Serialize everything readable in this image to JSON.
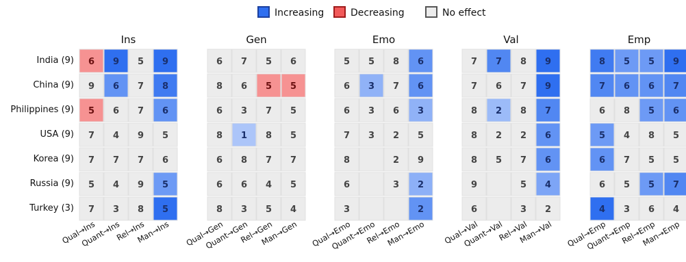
{
  "legend": {
    "items": [
      {
        "label": "Increasing",
        "color": "#2f6ff0",
        "border": "#1b3f9e"
      },
      {
        "label": "Decreasing",
        "color": "#f25a5a",
        "border": "#9e1b1b"
      },
      {
        "label": "No effect",
        "color": "#ececec",
        "border": "#555555"
      }
    ]
  },
  "chart_data": {
    "type": "heatmap",
    "rows": [
      "India (9)",
      "China (9)",
      "Philippines (9)",
      "USA (9)",
      "Korea (9)",
      "Russia (9)",
      "Turkey (3)"
    ],
    "panels": [
      {
        "title": "Ins",
        "columns": [
          "Qual→Ins",
          "Quant→Ins",
          "Rel→Ins",
          "Man→Ins"
        ],
        "cells": [
          [
            {
              "v": 6,
              "e": "dec",
              "s": 0.55
            },
            {
              "v": 9,
              "e": "inc",
              "s": 1.0
            },
            {
              "v": 5,
              "e": "none"
            },
            {
              "v": 9,
              "e": "inc",
              "s": 1.0
            }
          ],
          [
            {
              "v": 9,
              "e": "none"
            },
            {
              "v": 6,
              "e": "inc",
              "s": 0.67
            },
            {
              "v": 7,
              "e": "none"
            },
            {
              "v": 8,
              "e": "inc",
              "s": 0.89
            }
          ],
          [
            {
              "v": 5,
              "e": "dec",
              "s": 0.55
            },
            {
              "v": 6,
              "e": "none"
            },
            {
              "v": 7,
              "e": "none"
            },
            {
              "v": 6,
              "e": "inc",
              "s": 0.67
            }
          ],
          [
            {
              "v": 7,
              "e": "none"
            },
            {
              "v": 4,
              "e": "none"
            },
            {
              "v": 9,
              "e": "none"
            },
            {
              "v": 5,
              "e": "none"
            }
          ],
          [
            {
              "v": 7,
              "e": "none"
            },
            {
              "v": 7,
              "e": "none"
            },
            {
              "v": 7,
              "e": "none"
            },
            {
              "v": 6,
              "e": "none"
            }
          ],
          [
            {
              "v": 5,
              "e": "none"
            },
            {
              "v": 4,
              "e": "none"
            },
            {
              "v": 9,
              "e": "none"
            },
            {
              "v": 5,
              "e": "inc",
              "s": 0.6
            }
          ],
          [
            {
              "v": 7,
              "e": "none"
            },
            {
              "v": 3,
              "e": "none"
            },
            {
              "v": 8,
              "e": "none"
            },
            {
              "v": 5,
              "e": "inc",
              "s": 1.0
            }
          ]
        ]
      },
      {
        "title": "Gen",
        "columns": [
          "Qual→Gen",
          "Quant→Gen",
          "Rel→Gen",
          "Man→Gen"
        ],
        "cells": [
          [
            {
              "v": 6,
              "e": "none"
            },
            {
              "v": 7,
              "e": "none"
            },
            {
              "v": 5,
              "e": "none"
            },
            {
              "v": 6,
              "e": "none"
            }
          ],
          [
            {
              "v": 8,
              "e": "none"
            },
            {
              "v": 6,
              "e": "none"
            },
            {
              "v": 5,
              "e": "dec",
              "s": 0.55
            },
            {
              "v": 5,
              "e": "dec",
              "s": 0.55
            }
          ],
          [
            {
              "v": 6,
              "e": "none"
            },
            {
              "v": 3,
              "e": "none"
            },
            {
              "v": 7,
              "e": "none"
            },
            {
              "v": 5,
              "e": "none"
            }
          ],
          [
            {
              "v": 8,
              "e": "none"
            },
            {
              "v": 1,
              "e": "inc",
              "s": 0.2
            },
            {
              "v": 8,
              "e": "none"
            },
            {
              "v": 5,
              "e": "none"
            }
          ],
          [
            {
              "v": 6,
              "e": "none"
            },
            {
              "v": 8,
              "e": "none"
            },
            {
              "v": 7,
              "e": "none"
            },
            {
              "v": 7,
              "e": "none"
            }
          ],
          [
            {
              "v": 6,
              "e": "none"
            },
            {
              "v": 6,
              "e": "none"
            },
            {
              "v": 4,
              "e": "none"
            },
            {
              "v": 5,
              "e": "none"
            }
          ],
          [
            {
              "v": 8,
              "e": "none"
            },
            {
              "v": 3,
              "e": "none"
            },
            {
              "v": 5,
              "e": "none"
            },
            {
              "v": 4,
              "e": "none"
            }
          ]
        ]
      },
      {
        "title": "Emo",
        "columns": [
          "Qual→Emo",
          "Quant→Emo",
          "Rel→Emo",
          "Man→Emo"
        ],
        "cells": [
          [
            {
              "v": 5,
              "e": "none"
            },
            {
              "v": 5,
              "e": "none"
            },
            {
              "v": 8,
              "e": "none"
            },
            {
              "v": 6,
              "e": "inc",
              "s": 0.67
            }
          ],
          [
            {
              "v": 6,
              "e": "none"
            },
            {
              "v": 3,
              "e": "inc",
              "s": 0.38
            },
            {
              "v": 7,
              "e": "none"
            },
            {
              "v": 6,
              "e": "inc",
              "s": 0.67
            }
          ],
          [
            {
              "v": 6,
              "e": "none"
            },
            {
              "v": 3,
              "e": "none"
            },
            {
              "v": 6,
              "e": "none"
            },
            {
              "v": 3,
              "e": "inc",
              "s": 0.38
            }
          ],
          [
            {
              "v": 7,
              "e": "none"
            },
            {
              "v": 3,
              "e": "none"
            },
            {
              "v": 2,
              "e": "none"
            },
            {
              "v": 5,
              "e": "none"
            }
          ],
          [
            {
              "v": 8,
              "e": "none"
            },
            {
              "v": null,
              "e": "none"
            },
            {
              "v": 2,
              "e": "none"
            },
            {
              "v": 9,
              "e": "none"
            }
          ],
          [
            {
              "v": 6,
              "e": "none"
            },
            {
              "v": null,
              "e": "none"
            },
            {
              "v": 3,
              "e": "none"
            },
            {
              "v": 2,
              "e": "inc",
              "s": 0.4
            }
          ],
          [
            {
              "v": 3,
              "e": "none"
            },
            {
              "v": null,
              "e": "none"
            },
            {
              "v": null,
              "e": "none"
            },
            {
              "v": 2,
              "e": "inc",
              "s": 0.67
            }
          ]
        ]
      },
      {
        "title": "Val",
        "columns": [
          "Qual→Val",
          "Quant→Val",
          "Rel→Val",
          "Man→Val"
        ],
        "cells": [
          [
            {
              "v": 7,
              "e": "none"
            },
            {
              "v": 7,
              "e": "inc",
              "s": 0.78
            },
            {
              "v": 8,
              "e": "none"
            },
            {
              "v": 9,
              "e": "inc",
              "s": 1.0
            }
          ],
          [
            {
              "v": 7,
              "e": "none"
            },
            {
              "v": 6,
              "e": "none"
            },
            {
              "v": 7,
              "e": "none"
            },
            {
              "v": 9,
              "e": "inc",
              "s": 1.0
            }
          ],
          [
            {
              "v": 8,
              "e": "none"
            },
            {
              "v": 2,
              "e": "inc",
              "s": 0.3
            },
            {
              "v": 8,
              "e": "none"
            },
            {
              "v": 7,
              "e": "inc",
              "s": 0.78
            }
          ],
          [
            {
              "v": 8,
              "e": "none"
            },
            {
              "v": 2,
              "e": "none"
            },
            {
              "v": 2,
              "e": "none"
            },
            {
              "v": 6,
              "e": "inc",
              "s": 0.67
            }
          ],
          [
            {
              "v": 8,
              "e": "none"
            },
            {
              "v": 5,
              "e": "none"
            },
            {
              "v": 7,
              "e": "none"
            },
            {
              "v": 6,
              "e": "inc",
              "s": 0.67
            }
          ],
          [
            {
              "v": 9,
              "e": "none"
            },
            {
              "v": null,
              "e": "none"
            },
            {
              "v": 5,
              "e": "none"
            },
            {
              "v": 4,
              "e": "inc",
              "s": 0.5
            }
          ],
          [
            {
              "v": 6,
              "e": "none"
            },
            {
              "v": null,
              "e": "none"
            },
            {
              "v": 3,
              "e": "none"
            },
            {
              "v": 2,
              "e": "none"
            }
          ]
        ]
      },
      {
        "title": "Emp",
        "columns": [
          "Qual→Emp",
          "Quant→Emp",
          "Rel→Emp",
          "Man→Emp"
        ],
        "cells": [
          [
            {
              "v": 8,
              "e": "inc",
              "s": 0.89
            },
            {
              "v": 5,
              "e": "inc",
              "s": 0.6
            },
            {
              "v": 5,
              "e": "inc",
              "s": 0.6
            },
            {
              "v": 9,
              "e": "inc",
              "s": 1.0
            }
          ],
          [
            {
              "v": 7,
              "e": "inc",
              "s": 0.78
            },
            {
              "v": 6,
              "e": "inc",
              "s": 0.67
            },
            {
              "v": 6,
              "e": "inc",
              "s": 0.67
            },
            {
              "v": 7,
              "e": "inc",
              "s": 0.78
            }
          ],
          [
            {
              "v": 6,
              "e": "none"
            },
            {
              "v": 8,
              "e": "none"
            },
            {
              "v": 5,
              "e": "inc",
              "s": 0.6
            },
            {
              "v": 6,
              "e": "inc",
              "s": 0.67
            }
          ],
          [
            {
              "v": 5,
              "e": "inc",
              "s": 0.6
            },
            {
              "v": 4,
              "e": "none"
            },
            {
              "v": 8,
              "e": "none"
            },
            {
              "v": 5,
              "e": "none"
            }
          ],
          [
            {
              "v": 6,
              "e": "inc",
              "s": 0.67
            },
            {
              "v": 7,
              "e": "none"
            },
            {
              "v": 5,
              "e": "none"
            },
            {
              "v": 5,
              "e": "none"
            }
          ],
          [
            {
              "v": 6,
              "e": "none"
            },
            {
              "v": 5,
              "e": "none"
            },
            {
              "v": 5,
              "e": "inc",
              "s": 0.6
            },
            {
              "v": 7,
              "e": "inc",
              "s": 0.78
            }
          ],
          [
            {
              "v": 4,
              "e": "inc",
              "s": 1.0
            },
            {
              "v": 3,
              "e": "none"
            },
            {
              "v": 6,
              "e": "none"
            },
            {
              "v": 4,
              "e": "none"
            }
          ]
        ]
      }
    ]
  }
}
